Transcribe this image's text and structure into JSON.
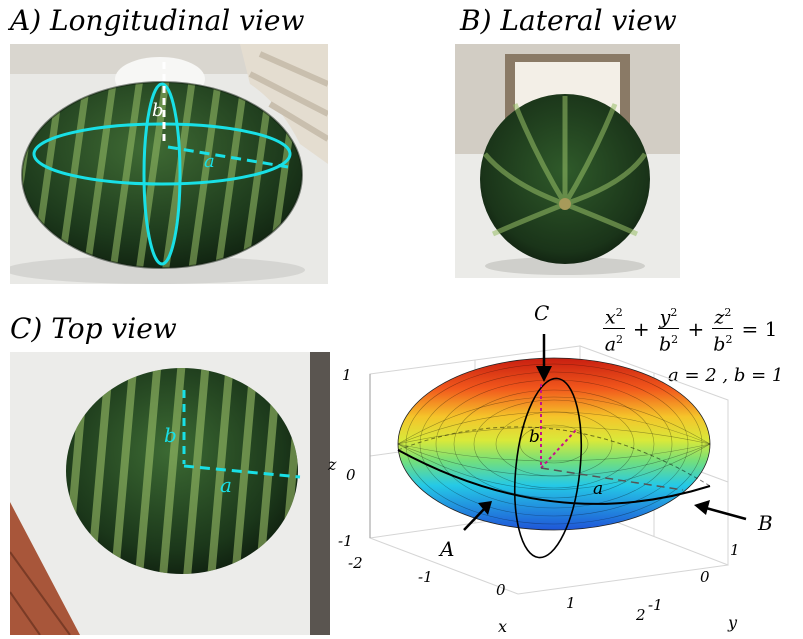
{
  "panels": {
    "a_title": "A) Longitudinal view",
    "b_title": "B) Lateral view",
    "c_title": "C) Top view"
  },
  "labels": {
    "a": "a",
    "b": "b",
    "view_A": "A",
    "view_B": "B",
    "view_C": "C"
  },
  "equation": {
    "t1_num": "x",
    "t1_den": "a",
    "t2_num": "y",
    "t2_den": "b",
    "t3_num": "z",
    "t3_den": "b",
    "exp": "2",
    "plus": "+",
    "equals": "= 1",
    "params": "a = 2 , b = 1"
  },
  "axes": {
    "x_label": "x",
    "y_label": "y",
    "z_label": "z",
    "x_ticks": [
      "-2",
      "-1",
      "0",
      "1",
      "2"
    ],
    "y_ticks": [
      "-1",
      "0",
      "1"
    ],
    "z_ticks": [
      "-1",
      "0",
      "1"
    ]
  },
  "colors": {
    "cyan": "#19e0e6",
    "rind_dark": "#1f3a1e",
    "rind_stripe": "#9cc46a",
    "table": "#eeeeec"
  }
}
